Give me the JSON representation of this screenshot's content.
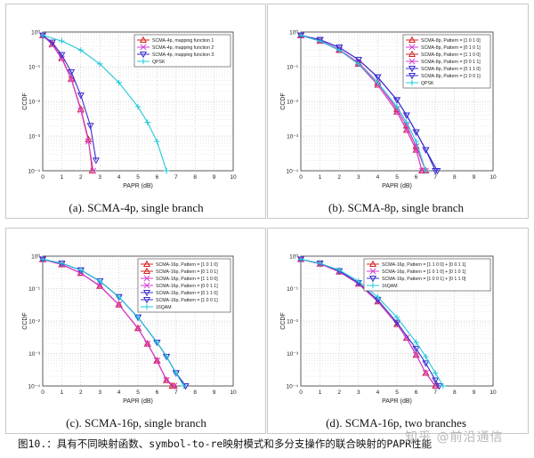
{
  "figure_caption": "图10.：具有不同映射函数、symbol-to-re映射模式和多分支操作的联合映射的PAPR性能",
  "watermark": "知乎 @前沿通信",
  "chart_data": [
    {
      "type": "line",
      "caption": "(a). SCMA-4p, single branch",
      "xlabel": "PAPR (dB)",
      "ylabel": "CCDF",
      "xlim": [
        0,
        10
      ],
      "ylim": [
        0.0001,
        1
      ],
      "yscale": "log",
      "xticks": [
        "0",
        "1",
        "2",
        "3",
        "4",
        "5",
        "6",
        "7",
        "8",
        "9",
        "10"
      ],
      "yticks": [
        "10⁰",
        "10⁻¹",
        "10⁻²",
        "10⁻³",
        "10⁻⁴"
      ],
      "legend_position": "top-right",
      "series": [
        {
          "name": "SCMA-4p, mapping function 1",
          "color": "#d62020",
          "marker": "triangle-up",
          "x": [
            0,
            0.5,
            1,
            1.5,
            2,
            2.4,
            2.6
          ],
          "y": [
            0.8,
            0.45,
            0.18,
            0.045,
            0.006,
            0.0008,
            0.0001
          ]
        },
        {
          "name": "SCMA-4p, mapping function 2",
          "color": "#d23fd2",
          "marker": "x",
          "x": [
            0,
            0.5,
            1,
            1.5,
            2,
            2.4,
            2.65
          ],
          "y": [
            0.8,
            0.43,
            0.17,
            0.043,
            0.0055,
            0.0007,
            0.0001
          ]
        },
        {
          "name": "SCMA-4p, mapping function 3",
          "color": "#3a2cd0",
          "marker": "triangle-down",
          "x": [
            0,
            0.5,
            1,
            1.5,
            2,
            2.5,
            2.8
          ],
          "y": [
            0.8,
            0.5,
            0.22,
            0.07,
            0.015,
            0.002,
            0.0002
          ]
        },
        {
          "name": "QPSK",
          "color": "#22c8d8",
          "marker": "plus",
          "x": [
            0,
            1,
            2,
            3,
            4,
            5,
            5.5,
            6,
            6.5
          ],
          "y": [
            0.8,
            0.55,
            0.3,
            0.12,
            0.035,
            0.007,
            0.0025,
            0.0007,
            0.0001
          ]
        }
      ]
    },
    {
      "type": "line",
      "caption": "(b). SCMA-8p, single branch",
      "xlabel": "PAPR (dB)",
      "ylabel": "CCDF",
      "xlim": [
        0,
        10
      ],
      "ylim": [
        0.0001,
        1
      ],
      "yscale": "log",
      "xticks": [
        "0",
        "1",
        "2",
        "3",
        "4",
        "5",
        "6",
        "7",
        "8",
        "9",
        "10"
      ],
      "yticks": [
        "10⁰",
        "10⁻¹",
        "10⁻²",
        "10⁻³",
        "10⁻⁴"
      ],
      "legend_position": "top-right",
      "series": [
        {
          "name": "SCMA-8p, Pattern = [1 0 1 0]",
          "color": "#d62020",
          "marker": "triangle-up",
          "x": [
            0,
            1,
            2,
            3,
            4,
            5,
            5.5,
            6,
            6.3
          ],
          "y": [
            0.8,
            0.55,
            0.3,
            0.12,
            0.03,
            0.005,
            0.0015,
            0.0004,
            0.0001
          ]
        },
        {
          "name": "SCMA-8p, Pattern = [0 1 0 1]",
          "color": "#d23fd2",
          "marker": "x",
          "x": [
            0,
            1,
            2,
            3,
            4,
            5,
            5.5,
            6,
            6.3
          ],
          "y": [
            0.8,
            0.55,
            0.3,
            0.12,
            0.03,
            0.005,
            0.0015,
            0.0004,
            0.0001
          ]
        },
        {
          "name": "SCMA-8p, Pattern = [1 1 0 0]",
          "color": "#d62020",
          "marker": "triangle-up",
          "x": [
            0,
            1,
            2,
            3,
            4,
            5,
            5.5,
            6,
            6.5
          ],
          "y": [
            0.8,
            0.56,
            0.31,
            0.13,
            0.035,
            0.006,
            0.002,
            0.0005,
            0.0001
          ]
        },
        {
          "name": "SCMA-8p, Pattern = [0 0 1 1]",
          "color": "#d23fd2",
          "marker": "x",
          "x": [
            0,
            1,
            2,
            3,
            4,
            5,
            5.5,
            6,
            6.5
          ],
          "y": [
            0.8,
            0.56,
            0.31,
            0.13,
            0.035,
            0.006,
            0.002,
            0.0005,
            0.0001
          ]
        },
        {
          "name": "SCMA-8p, Pattern = [0 1 1 0]",
          "color": "#3a2cd0",
          "marker": "triangle-down",
          "x": [
            0,
            1,
            2,
            3,
            4,
            5,
            5.5,
            6,
            6.5,
            7
          ],
          "y": [
            0.8,
            0.6,
            0.36,
            0.16,
            0.05,
            0.011,
            0.004,
            0.0013,
            0.0004,
            0.0001
          ]
        },
        {
          "name": "SCMA-8p, Pattern = [1 0 0 1]",
          "color": "#3a2cd0",
          "marker": "triangle-down",
          "x": [
            0,
            1,
            2,
            3,
            4,
            5,
            5.5,
            6,
            6.5,
            7.1
          ],
          "y": [
            0.8,
            0.6,
            0.36,
            0.16,
            0.05,
            0.011,
            0.004,
            0.0013,
            0.0004,
            0.0001
          ]
        },
        {
          "name": "QPSK",
          "color": "#22c8d8",
          "marker": "plus",
          "x": [
            0,
            1,
            2,
            3,
            4,
            5,
            5.5,
            6,
            6.5
          ],
          "y": [
            0.8,
            0.55,
            0.3,
            0.12,
            0.035,
            0.007,
            0.0025,
            0.0007,
            0.0001
          ]
        }
      ]
    },
    {
      "type": "line",
      "caption": "(c). SCMA-16p, single branch",
      "xlabel": "PAPR (dB)",
      "ylabel": "CCDF",
      "xlim": [
        0,
        10
      ],
      "ylim": [
        0.0001,
        1
      ],
      "yscale": "log",
      "xticks": [
        "0",
        "1",
        "2",
        "3",
        "4",
        "5",
        "6",
        "7",
        "8",
        "9",
        "10"
      ],
      "yticks": [
        "10⁰",
        "10⁻¹",
        "10⁻²",
        "10⁻³",
        "10⁻⁴"
      ],
      "legend_position": "top-right",
      "series": [
        {
          "name": "SCMA-16p, Pattern = [1 0 1 0]",
          "color": "#d62020",
          "marker": "triangle-up",
          "x": [
            0,
            1,
            2,
            3,
            4,
            5,
            5.5,
            6,
            6.5,
            6.8
          ],
          "y": [
            0.8,
            0.55,
            0.3,
            0.12,
            0.032,
            0.006,
            0.002,
            0.0006,
            0.00015,
            0.0001
          ]
        },
        {
          "name": "SCMA-16p, Pattern = [0 1 0 1]",
          "color": "#d62020",
          "marker": "triangle-up",
          "x": [
            0,
            1,
            2,
            3,
            4,
            5,
            5.5,
            6,
            6.5,
            6.9
          ],
          "y": [
            0.8,
            0.55,
            0.3,
            0.12,
            0.032,
            0.006,
            0.002,
            0.0006,
            0.00015,
            0.0001
          ]
        },
        {
          "name": "SCMA-16p, Pattern = [1 1 0 0]",
          "color": "#d23fd2",
          "marker": "x",
          "x": [
            0,
            1,
            2,
            3,
            4,
            5,
            5.5,
            6,
            6.5,
            6.9
          ],
          "y": [
            0.8,
            0.55,
            0.3,
            0.12,
            0.032,
            0.006,
            0.002,
            0.0006,
            0.00015,
            0.0001
          ]
        },
        {
          "name": "SCMA-16p, Pattern = [0 0 1 1]",
          "color": "#d23fd2",
          "marker": "x",
          "x": [
            0,
            1,
            2,
            3,
            4,
            5,
            5.5,
            6,
            6.5,
            6.9
          ],
          "y": [
            0.8,
            0.55,
            0.3,
            0.12,
            0.032,
            0.006,
            0.002,
            0.0006,
            0.00015,
            0.0001
          ]
        },
        {
          "name": "SCMA-16p, Pattern = [0 1 1 0]",
          "color": "#3a2cd0",
          "marker": "triangle-down",
          "x": [
            0,
            1,
            2,
            3,
            4,
            5,
            6,
            6.5,
            7,
            7.5
          ],
          "y": [
            0.8,
            0.6,
            0.37,
            0.17,
            0.055,
            0.013,
            0.0022,
            0.0008,
            0.00025,
            0.0001
          ]
        },
        {
          "name": "SCMA-16p, Pattern = [1 0 0 1]",
          "color": "#3a2cd0",
          "marker": "triangle-down",
          "x": [
            0,
            1,
            2,
            3,
            4,
            5,
            6,
            6.5,
            7,
            7.5
          ],
          "y": [
            0.8,
            0.6,
            0.37,
            0.17,
            0.055,
            0.013,
            0.0022,
            0.0008,
            0.00025,
            0.0001
          ]
        },
        {
          "name": "16QAM",
          "color": "#22c8d8",
          "marker": "plus",
          "x": [
            0,
            1,
            2,
            3,
            4,
            5,
            6,
            6.5,
            7,
            7.4
          ],
          "y": [
            0.8,
            0.6,
            0.37,
            0.17,
            0.055,
            0.013,
            0.0022,
            0.0008,
            0.00025,
            0.0001
          ]
        }
      ]
    },
    {
      "type": "line",
      "caption": "(d). SCMA-16p, two branches",
      "xlabel": "PAPR (dB)",
      "ylabel": "CCDF",
      "xlim": [
        0,
        10
      ],
      "ylim": [
        0.0001,
        1
      ],
      "yscale": "log",
      "xticks": [
        "0",
        "1",
        "2",
        "3",
        "4",
        "5",
        "6",
        "7",
        "8",
        "9",
        "10"
      ],
      "yticks": [
        "10⁰",
        "10⁻¹",
        "10⁻²",
        "10⁻³",
        "10⁻⁴"
      ],
      "legend_position": "top-right",
      "series": [
        {
          "name": "SCMA-16p, Pattern = [1 1 0 0] + [0 0 1 1]",
          "color": "#d62020",
          "marker": "triangle-up",
          "x": [
            0,
            1,
            2,
            3,
            4,
            5,
            5.5,
            6,
            6.5,
            7
          ],
          "y": [
            0.8,
            0.58,
            0.33,
            0.14,
            0.04,
            0.008,
            0.003,
            0.0009,
            0.00025,
            0.0001
          ]
        },
        {
          "name": "SCMA-16p, Pattern = [1 0 1 0] + [0 1 0 1]",
          "color": "#d23fd2",
          "marker": "x",
          "x": [
            0,
            1,
            2,
            3,
            4,
            5,
            5.5,
            6,
            6.5,
            7
          ],
          "y": [
            0.8,
            0.58,
            0.33,
            0.14,
            0.04,
            0.008,
            0.003,
            0.0009,
            0.00025,
            0.0001
          ]
        },
        {
          "name": "SCMA-16p, Pattern = [1 0 0 1] + [0 1 1 0]",
          "color": "#3a2cd0",
          "marker": "triangle-down",
          "x": [
            0,
            1,
            2,
            3,
            4,
            5,
            6,
            6.5,
            7,
            7.2
          ],
          "y": [
            0.8,
            0.6,
            0.35,
            0.15,
            0.045,
            0.009,
            0.0014,
            0.0005,
            0.00015,
            0.0001
          ]
        },
        {
          "name": "16QAM",
          "color": "#22c8d8",
          "marker": "plus",
          "x": [
            0,
            1,
            2,
            3,
            4,
            5,
            6,
            6.5,
            7,
            7.4
          ],
          "y": [
            0.8,
            0.6,
            0.37,
            0.17,
            0.055,
            0.013,
            0.0022,
            0.0008,
            0.00025,
            0.0001
          ]
        }
      ]
    }
  ]
}
